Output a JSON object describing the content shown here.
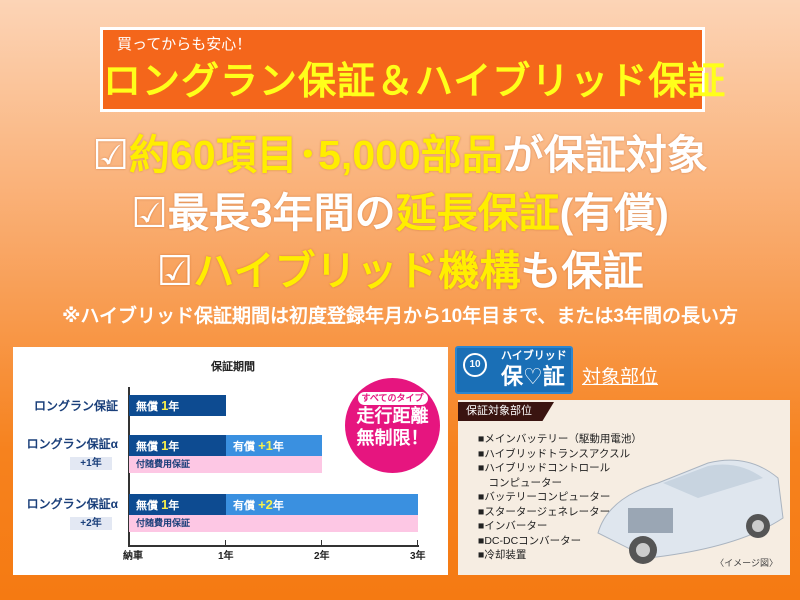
{
  "header": {
    "subtitle": "買ってからも安心！",
    "title": "ロングラン保証＆ハイブリッド保証"
  },
  "points": [
    {
      "check": "☑",
      "yellow": "約60項目･5,000部品",
      "white": "が保証対象"
    },
    {
      "check": "☑",
      "white": "最長3年間の",
      "yellow": "延長保証",
      "white2": "(有償)"
    },
    {
      "check": "☑",
      "yellow": "ハイブリッド機構",
      "white": "も保証"
    }
  ],
  "note": "※ハイブリッド保証期間は初度登録年月から10年目まで、または3年間の長い方",
  "warranty_chart": {
    "title": "保証期間",
    "rows": [
      {
        "label": "ロングラン保証",
        "tag": "",
        "free": "無償",
        "free_n": "1",
        "free_u": "年",
        "paid": "",
        "paid_n": "",
        "paid_u": "",
        "extra": ""
      },
      {
        "label": "ロングラン保証α",
        "tag": "+1年",
        "free": "無償",
        "free_n": "1",
        "free_u": "年",
        "paid": "有償",
        "paid_n": "+1",
        "paid_u": "年",
        "extra": "付随費用保証"
      },
      {
        "label": "ロングラン保証α",
        "tag": "+2年",
        "free": "無償",
        "free_n": "1",
        "free_u": "年",
        "paid": "有償",
        "paid_n": "+2",
        "paid_u": "年",
        "extra": "付随費用保証"
      }
    ],
    "ticks": [
      "納車",
      "1年",
      "2年",
      "3年"
    ],
    "badge": {
      "top": "すべてのタイプ",
      "line1": "走行距離",
      "line2": "無制限！"
    }
  },
  "hybrid": {
    "badge_num": "10",
    "badge_top": "ハイブリッド",
    "badge_main": "保♡証",
    "title": "対象部位",
    "panel_label": "保証対象部位",
    "items": [
      "■メインバッテリー（駆動用電池）",
      "■ハイブリッドトランスアクスル",
      "■ハイブリッドコントロール",
      "　コンピューター",
      "■バッテリーコンピューター",
      "■スタータージェネレーター",
      "■インバーター",
      "■DC-DCコンバーター",
      "■冷却装置"
    ],
    "caption": "〈イメージ図〉"
  },
  "colors": {
    "orange": "#f4661b",
    "yellow": "#ffee00",
    "navy": "#0d4b91",
    "blue": "#3a90e0",
    "pink": "#fdc7e4",
    "magenta": "#e6157f"
  }
}
